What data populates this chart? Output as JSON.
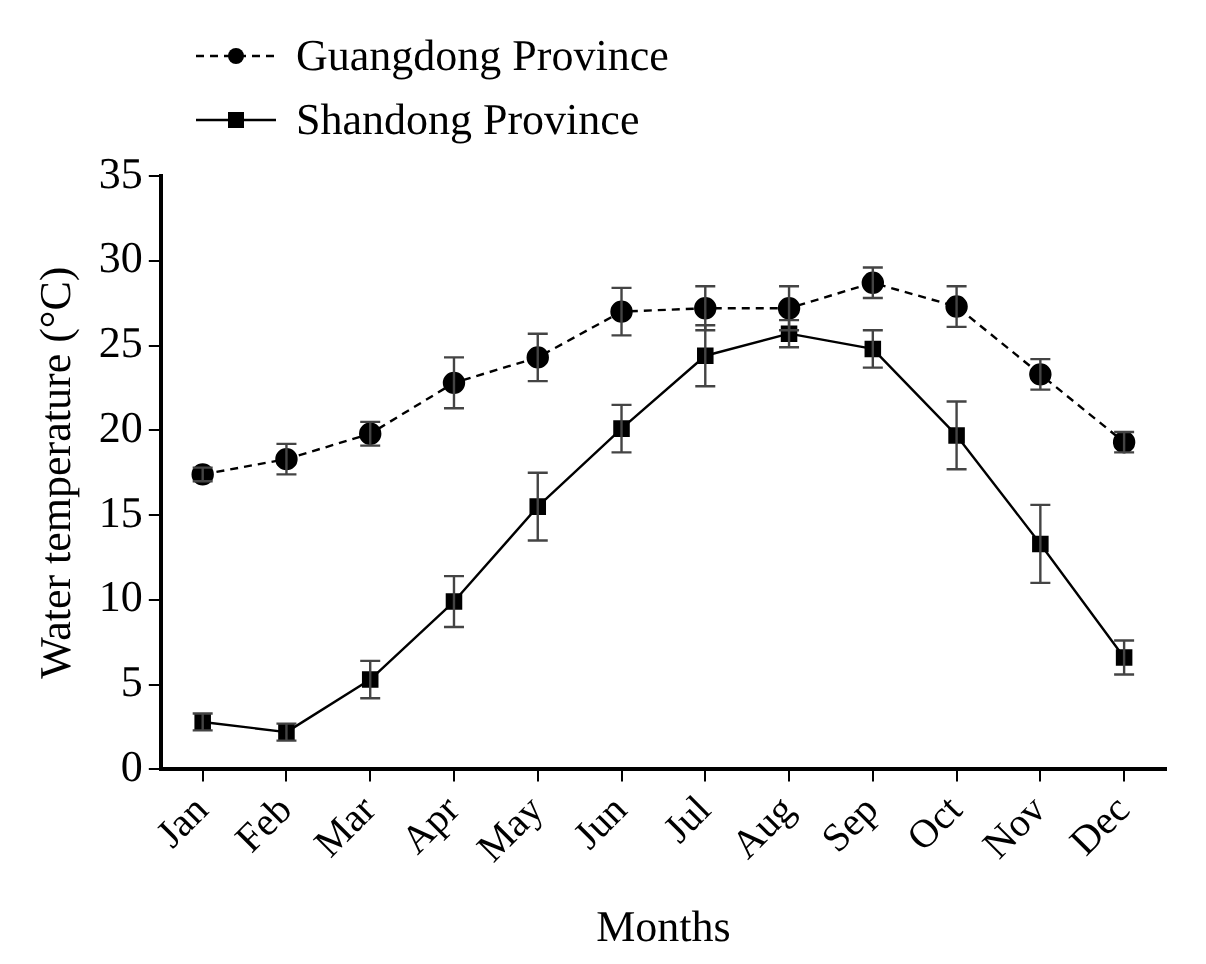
{
  "chart_data": {
    "type": "line",
    "xlabel": "Months",
    "ylabel": "Water temperature (°C)",
    "categories": [
      "Jan",
      "Feb",
      "Mar",
      "Apr",
      "May",
      "Jun",
      "Jul",
      "Aug",
      "Sep",
      "Oct",
      "Nov",
      "Dec"
    ],
    "series": [
      {
        "name": "Guangdong Province",
        "color": "#000000",
        "marker": "circle",
        "line_style": "dashed",
        "values": [
          17.4,
          18.3,
          19.8,
          22.8,
          24.3,
          27.0,
          27.2,
          27.2,
          28.7,
          27.3,
          23.3,
          19.3
        ],
        "errors": [
          0.4,
          0.9,
          0.7,
          1.5,
          1.4,
          1.4,
          1.3,
          1.3,
          0.9,
          1.2,
          0.9,
          0.6
        ]
      },
      {
        "name": "Shandong Province",
        "color": "#000000",
        "marker": "square",
        "line_style": "solid",
        "values": [
          2.8,
          2.2,
          5.3,
          9.9,
          15.5,
          20.1,
          24.4,
          25.7,
          24.8,
          19.7,
          13.3,
          6.6
        ],
        "errors": [
          0.5,
          0.5,
          1.1,
          1.5,
          2.0,
          1.4,
          1.8,
          0.8,
          1.1,
          2.0,
          2.3,
          1.0
        ]
      }
    ],
    "ylim": [
      0,
      35
    ],
    "yticks": [
      0,
      5,
      10,
      15,
      20,
      25,
      30,
      35
    ],
    "grid": false,
    "legend": "top left"
  }
}
